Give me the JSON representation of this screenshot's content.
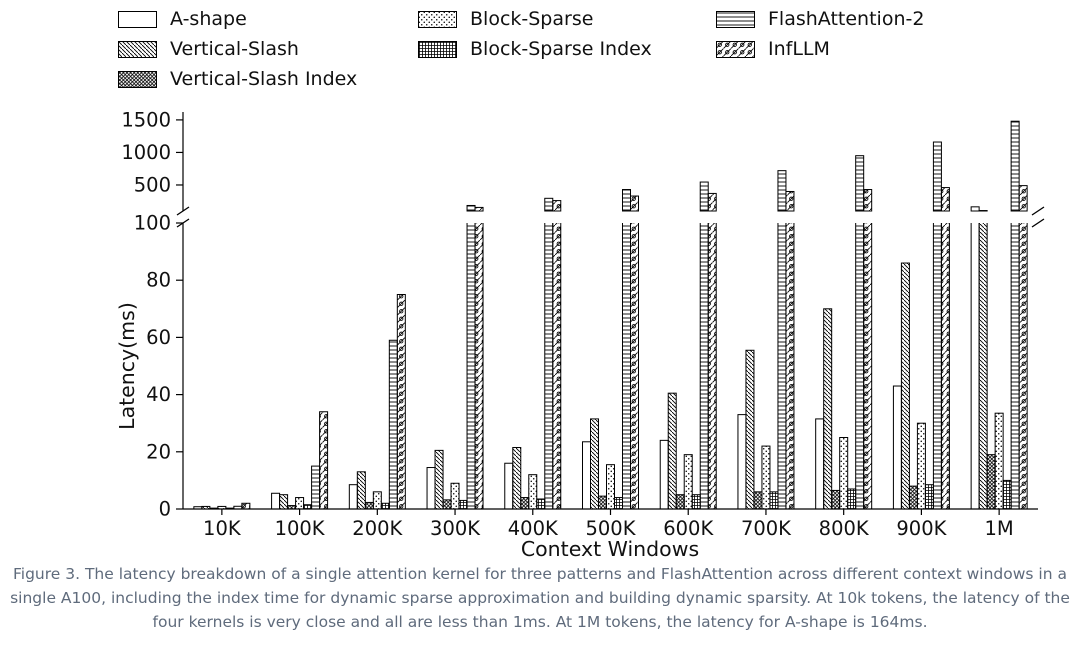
{
  "colors": {
    "background": "#ffffff",
    "bar_stroke": "#000000",
    "text": "#111111",
    "caption": "#5f6b7c"
  },
  "legend": {
    "items": [
      {
        "label": "A-shape",
        "pattern": "ashape",
        "row": 1,
        "col": 1
      },
      {
        "label": "Vertical-Slash",
        "pattern": "vslash",
        "row": 2,
        "col": 1
      },
      {
        "label": "Vertical-Slash Index",
        "pattern": "vsindex",
        "row": 3,
        "col": 1
      },
      {
        "label": "Block-Sparse",
        "pattern": "bsparse",
        "row": 1,
        "col": 2
      },
      {
        "label": "Block-Sparse Index",
        "pattern": "bsindex",
        "row": 2,
        "col": 2
      },
      {
        "label": "FlashAttention-2",
        "pattern": "fa2",
        "row": 1,
        "col": 3
      },
      {
        "label": "InfLLM",
        "pattern": "infllm",
        "row": 2,
        "col": 3
      }
    ]
  },
  "chart_data": {
    "type": "bar",
    "title": "",
    "xlabel": "Context Windows",
    "ylabel": "Latency(ms)",
    "categories": [
      "10K",
      "100K",
      "200K",
      "300K",
      "400K",
      "500K",
      "600K",
      "700K",
      "800K",
      "900K",
      "1M"
    ],
    "series": [
      {
        "name": "A-shape",
        "pattern": "ashape",
        "values": [
          0.8,
          5.5,
          8.5,
          14.5,
          16,
          23.5,
          24,
          33,
          31.5,
          43,
          164
        ]
      },
      {
        "name": "Vertical-Slash",
        "pattern": "vslash",
        "values": [
          0.9,
          5,
          13,
          20.5,
          21.5,
          31.5,
          40.5,
          55.5,
          70,
          86,
          107
        ]
      },
      {
        "name": "Vertical-Slash Index",
        "pattern": "vsindex",
        "values": [
          0.3,
          1.2,
          2.3,
          3.2,
          4,
          4.5,
          5,
          6,
          6.5,
          8,
          19
        ]
      },
      {
        "name": "Block-Sparse",
        "pattern": "bsparse",
        "values": [
          0.9,
          4,
          6,
          9,
          12,
          15.5,
          19,
          22,
          25,
          30,
          33.5
        ]
      },
      {
        "name": "Block-Sparse Index",
        "pattern": "bsindex",
        "values": [
          0.3,
          1.5,
          2,
          3,
          3.5,
          4,
          5,
          6,
          7,
          8.5,
          10
        ]
      },
      {
        "name": "FlashAttention-2",
        "pattern": "fa2",
        "values": [
          0.95,
          15,
          59,
          185,
          295,
          430,
          545,
          720,
          950,
          1160,
          1480
        ]
      },
      {
        "name": "InfLLM",
        "pattern": "infllm",
        "values": [
          2,
          34,
          75,
          155,
          260,
          330,
          370,
          400,
          430,
          460,
          490
        ]
      }
    ],
    "broken_axis": {
      "lower_range": [
        0,
        100
      ],
      "upper_range": [
        100,
        1560
      ],
      "lower_ticks": [
        0,
        20,
        40,
        60,
        80,
        100
      ],
      "upper_ticks": [
        500,
        1000,
        1500
      ]
    },
    "grid": false,
    "legend_position": "top"
  },
  "caption": {
    "text": "Figure 3. The latency breakdown of a single attention kernel for three patterns and FlashAttention across different context windows in a single A100, including the index time for dynamic sparse approximation and building dynamic sparsity. At 10k tokens, the latency of the four kernels is very close and all are less than 1ms. At 1M tokens, the latency for A-shape is 164ms."
  }
}
